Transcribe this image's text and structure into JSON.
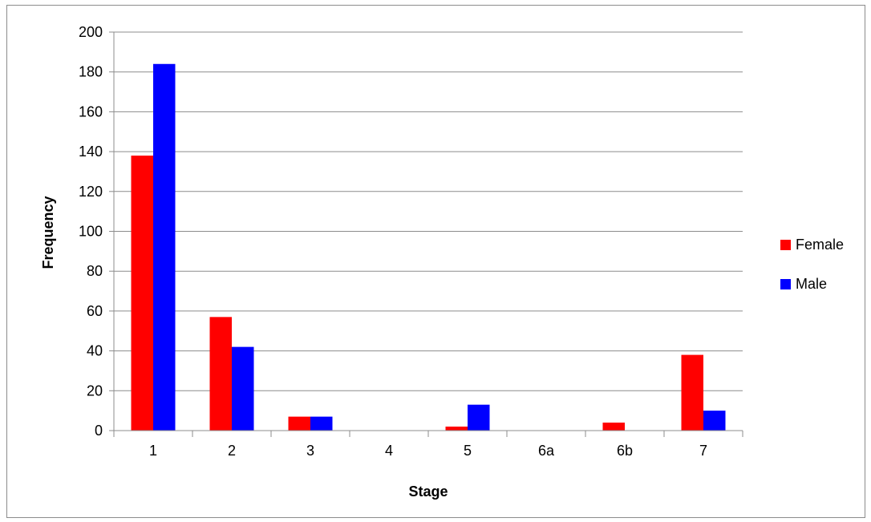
{
  "chart_data": {
    "type": "bar",
    "title": "",
    "xlabel": "Stage",
    "ylabel": "Frequency",
    "categories": [
      "1",
      "2",
      "3",
      "4",
      "5",
      "6a",
      "6b",
      "7"
    ],
    "ylim": [
      0,
      200
    ],
    "yticks": [
      0,
      20,
      40,
      60,
      80,
      100,
      120,
      140,
      160,
      180,
      200
    ],
    "grid": true,
    "legend_position": "right",
    "series": [
      {
        "name": "Female",
        "color": "#ff0000",
        "values": [
          138,
          57,
          7,
          0,
          2,
          0,
          4,
          38
        ]
      },
      {
        "name": "Male",
        "color": "#0000ff",
        "values": [
          184,
          42,
          7,
          0,
          13,
          0,
          0,
          10
        ]
      }
    ]
  }
}
